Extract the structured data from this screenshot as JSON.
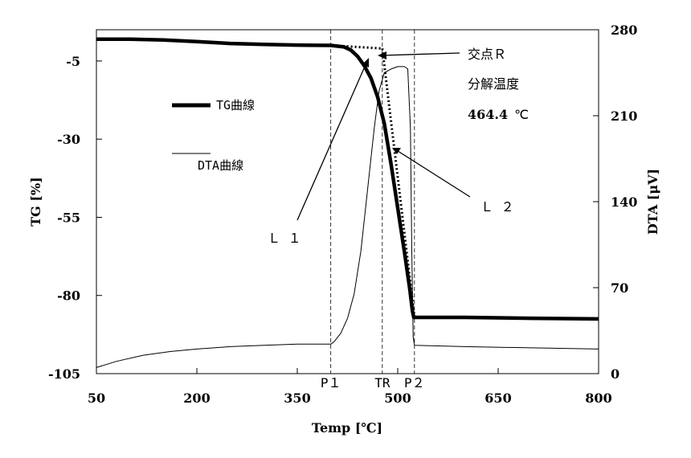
{
  "chart_data": {
    "type": "line",
    "xlabel": "Temp [℃]",
    "ylabel_left": "TG [%]",
    "ylabel_right": "DTA [μV]",
    "xlim": [
      50,
      800
    ],
    "ylim_left": [
      -105,
      5
    ],
    "ylim_right": [
      0,
      280
    ],
    "x_ticks": [
      50,
      200,
      350,
      500,
      650,
      800
    ],
    "y_left_ticks": [
      -105,
      -80,
      -55,
      -30,
      -5
    ],
    "y_right_ticks": [
      0,
      70,
      140,
      210,
      280
    ],
    "grid": false,
    "legend_position": "left",
    "series": [
      {
        "name": "TG曲線",
        "axis": "left",
        "style": "thick",
        "points": [
          [
            50,
            2.0
          ],
          [
            100,
            2.0
          ],
          [
            150,
            1.7
          ],
          [
            200,
            1.2
          ],
          [
            250,
            0.6
          ],
          [
            300,
            0.3
          ],
          [
            350,
            0.1
          ],
          [
            400,
            0.0
          ],
          [
            420,
            -0.5
          ],
          [
            430,
            -1.5
          ],
          [
            440,
            -3.5
          ],
          [
            450,
            -6.5
          ],
          [
            460,
            -10.5
          ],
          [
            470,
            -16.5
          ],
          [
            480,
            -25
          ],
          [
            490,
            -38
          ],
          [
            500,
            -52
          ],
          [
            510,
            -66
          ],
          [
            518,
            -78
          ],
          [
            522,
            -85
          ],
          [
            524,
            -87
          ],
          [
            530,
            -87
          ],
          [
            600,
            -87
          ],
          [
            700,
            -87.3
          ],
          [
            800,
            -87.5
          ]
        ]
      },
      {
        "name": "DTA曲線",
        "axis": "right",
        "style": "thin",
        "points": [
          [
            50,
            5
          ],
          [
            80,
            10
          ],
          [
            120,
            15
          ],
          [
            160,
            18
          ],
          [
            200,
            20
          ],
          [
            250,
            22
          ],
          [
            300,
            23
          ],
          [
            350,
            24
          ],
          [
            400,
            24
          ],
          [
            405,
            26
          ],
          [
            415,
            33
          ],
          [
            425,
            45
          ],
          [
            435,
            65
          ],
          [
            445,
            100
          ],
          [
            455,
            150
          ],
          [
            465,
            200
          ],
          [
            472,
            230
          ],
          [
            480,
            245
          ],
          [
            490,
            248
          ],
          [
            500,
            250
          ],
          [
            510,
            250
          ],
          [
            515,
            248
          ],
          [
            519,
            200
          ],
          [
            521,
            100
          ],
          [
            523,
            30
          ],
          [
            525,
            23
          ],
          [
            600,
            22
          ],
          [
            700,
            21
          ],
          [
            800,
            20
          ]
        ]
      }
    ],
    "tangent_lines": {
      "L1_points": [
        [
          400,
          0
        ],
        [
          477,
          -1
        ]
      ],
      "L2_points": [
        [
          477,
          -1
        ],
        [
          525,
          -87
        ]
      ]
    },
    "vertical_markers": [
      {
        "label": "P１",
        "x": 400
      },
      {
        "label": "TR",
        "x": 477
      },
      {
        "label": "P２",
        "x": 525
      }
    ],
    "annotations": {
      "intersection_label": "交点Ｒ",
      "decomposition_label": "分解温度",
      "decomposition_value": "464.4",
      "decomposition_unit": "℃",
      "L1_label": "Ｌ １",
      "L2_label": "Ｌ ２"
    }
  }
}
